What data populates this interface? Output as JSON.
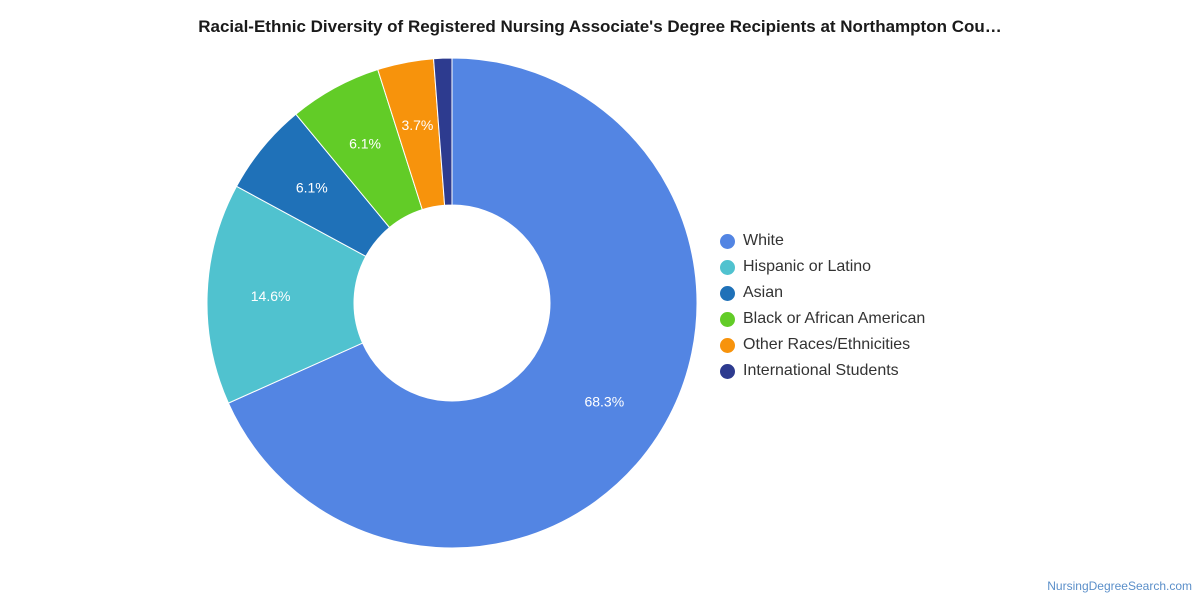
{
  "chart_data": {
    "type": "pie",
    "title": "Racial-Ethnic Diversity of Registered Nursing Associate's Degree Recipients at Northampton Cou…",
    "donut": true,
    "legend_position": "right",
    "slices": [
      {
        "name": "White",
        "value": 68.3,
        "label": "68.3%",
        "color": "#5385e3"
      },
      {
        "name": "Hispanic or Latino",
        "value": 14.6,
        "label": "14.6%",
        "color": "#50c2cf"
      },
      {
        "name": "Asian",
        "value": 6.1,
        "label": "6.1%",
        "color": "#1f71b8"
      },
      {
        "name": "Black or African American",
        "value": 6.1,
        "label": "6.1%",
        "color": "#62cc27"
      },
      {
        "name": "Other Races/Ethnicities",
        "value": 3.7,
        "label": "3.7%",
        "color": "#f7930c"
      },
      {
        "name": "International Students",
        "value": 1.2,
        "label": "",
        "color": "#2d3b8f"
      }
    ]
  },
  "credit": "NursingDegreeSearch.com"
}
